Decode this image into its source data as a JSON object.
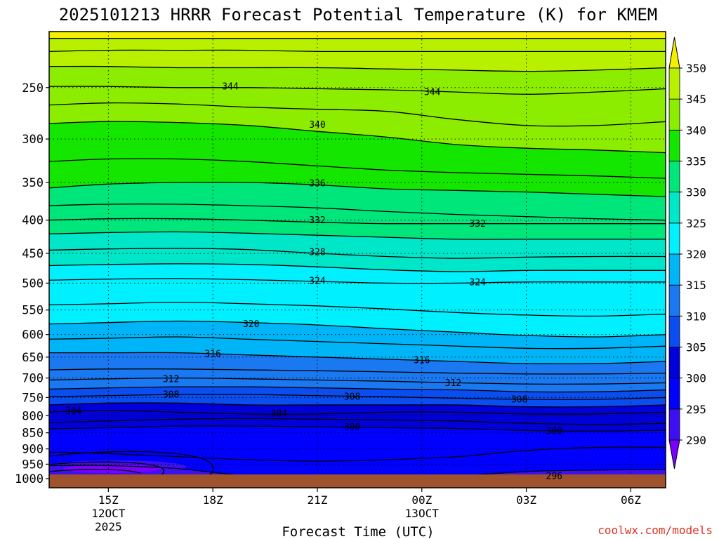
{
  "chart_data": {
    "type": "heatmap",
    "title": "2025101213 HRRR Forecast Potential Temperature (K) for KMEM",
    "xlabel": "Forecast Time (UTC)",
    "ylabel": "",
    "credit": "coolwx.com/models",
    "y_scale": "log-pressure",
    "y_ticks": [
      250,
      300,
      350,
      400,
      450,
      500,
      550,
      600,
      650,
      700,
      750,
      800,
      850,
      900,
      950,
      1000
    ],
    "ylim": [
      205,
      1010
    ],
    "xlim": [
      13.3,
      31.0
    ],
    "x_ticks": [
      {
        "x": 15,
        "label": "15Z",
        "sub1": "12OCT",
        "sub2": "2025"
      },
      {
        "x": 18,
        "label": "18Z",
        "sub1": "",
        "sub2": ""
      },
      {
        "x": 21,
        "label": "21Z",
        "sub1": "",
        "sub2": ""
      },
      {
        "x": 24,
        "label": "00Z",
        "sub1": "13OCT",
        "sub2": ""
      },
      {
        "x": 27,
        "label": "03Z",
        "sub1": "",
        "sub2": ""
      },
      {
        "x": 30,
        "label": "06Z",
        "sub1": "",
        "sub2": ""
      }
    ],
    "grid": true,
    "colorbar": {
      "unit": "K",
      "labels": [
        290,
        295,
        300,
        305,
        310,
        315,
        320,
        325,
        330,
        335,
        340,
        345,
        350
      ],
      "colors": [
        "#7a00ff",
        "#3c10f0",
        "#0000ff",
        "#0000d8",
        "#0a4ef0",
        "#1a78f0",
        "#00b4f8",
        "#00f0ff",
        "#00e6c8",
        "#00e67a",
        "#14e600",
        "#8ced00",
        "#b8f000",
        "#f4f000"
      ]
    },
    "contour_interval_K": 2,
    "x_samples": [
      13.3,
      15,
      17,
      19,
      21,
      23,
      25,
      27,
      29,
      31
    ],
    "isentropes": [
      {
        "theta": 294,
        "p": [
          993,
          993,
          993,
          993,
          993,
          993,
          993,
          993,
          993,
          993
        ]
      },
      {
        "theta": 296,
        "p": [
          955,
          955,
          965,
          990,
          993,
          993,
          990,
          975,
          970,
          968
        ]
      },
      {
        "theta": 298,
        "p": [
          910,
          915,
          925,
          935,
          940,
          935,
          925,
          905,
          895,
          895
        ]
      },
      {
        "theta": 300,
        "p": [
          838,
          835,
          830,
          830,
          832,
          835,
          837,
          843,
          845,
          842
        ]
      },
      {
        "theta": 302,
        "p": [
          820,
          815,
          810,
          808,
          810,
          812,
          815,
          822,
          825,
          822
        ]
      },
      {
        "theta": 304,
        "p": [
          790,
          785,
          790,
          795,
          795,
          790,
          790,
          795,
          795,
          790
        ]
      },
      {
        "theta": 306,
        "p": [
          770,
          765,
          765,
          770,
          770,
          770,
          770,
          775,
          775,
          770
        ]
      },
      {
        "theta": 308,
        "p": [
          748,
          745,
          742,
          742,
          745,
          748,
          752,
          755,
          755,
          750
        ]
      },
      {
        "theta": 310,
        "p": [
          728,
          725,
          722,
          722,
          725,
          728,
          730,
          735,
          735,
          730
        ]
      },
      {
        "theta": 312,
        "p": [
          705,
          702,
          700,
          702,
          705,
          708,
          712,
          715,
          715,
          712
        ]
      },
      {
        "theta": 314,
        "p": [
          680,
          678,
          678,
          680,
          682,
          685,
          688,
          690,
          690,
          688
        ]
      },
      {
        "theta": 316,
        "p": [
          640,
          640,
          640,
          645,
          650,
          655,
          660,
          665,
          665,
          660
        ]
      },
      {
        "theta": 318,
        "p": [
          610,
          608,
          605,
          610,
          615,
          620,
          625,
          630,
          630,
          625
        ]
      },
      {
        "theta": 320,
        "p": [
          578,
          575,
          572,
          575,
          580,
          588,
          595,
          602,
          605,
          600
        ]
      },
      {
        "theta": 322,
        "p": [
          540,
          538,
          535,
          538,
          542,
          548,
          555,
          560,
          562,
          558
        ]
      },
      {
        "theta": 324,
        "p": [
          495,
          493,
          492,
          494,
          497,
          500,
          500,
          498,
          498,
          498
        ]
      },
      {
        "theta": 326,
        "p": [
          470,
          468,
          467,
          468,
          472,
          477,
          480,
          478,
          478,
          478
        ]
      },
      {
        "theta": 328,
        "p": [
          445,
          443,
          442,
          444,
          450,
          455,
          458,
          456,
          455,
          455
        ]
      },
      {
        "theta": 330,
        "p": [
          420,
          418,
          417,
          419,
          422,
          425,
          428,
          428,
          428,
          428
        ]
      },
      {
        "theta": 332,
        "p": [
          400,
          398,
          398,
          400,
          403,
          405,
          405,
          405,
          405,
          405
        ]
      },
      {
        "theta": 334,
        "p": [
          380,
          378,
          378,
          380,
          383,
          388,
          392,
          395,
          398,
          400
        ]
      },
      {
        "theta": 336,
        "p": [
          357,
          352,
          350,
          350,
          353,
          358,
          360,
          362,
          365,
          368
        ]
      },
      {
        "theta": 338,
        "p": [
          325,
          322,
          322,
          325,
          330,
          335,
          338,
          340,
          342,
          345
        ]
      },
      {
        "theta": 340,
        "p": [
          284,
          282,
          283,
          286,
          292,
          298,
          306,
          310,
          312,
          315
        ]
      },
      {
        "theta": 342,
        "p": [
          266,
          264,
          265,
          268,
          270,
          272,
          280,
          286,
          286,
          282
        ]
      },
      {
        "theta": 344,
        "p": [
          249,
          249,
          250,
          250,
          251,
          252,
          254,
          256,
          254,
          251
        ]
      },
      {
        "theta": 346,
        "p": [
          232,
          232,
          233,
          233,
          233,
          234,
          235,
          236,
          235,
          233
        ]
      },
      {
        "theta": 348,
        "p": [
          220,
          219,
          219,
          219,
          220,
          220,
          220,
          220,
          220,
          220
        ]
      },
      {
        "theta": 350,
        "p": [
          210,
          210,
          210,
          210,
          210,
          210,
          210,
          210,
          210,
          210
        ]
      }
    ],
    "contour_labels": [
      {
        "text": "344",
        "x": 18.5,
        "p": 249
      },
      {
        "text": "344",
        "x": 24.3,
        "p": 254
      },
      {
        "text": "340",
        "x": 21.0,
        "p": 285
      },
      {
        "text": "336",
        "x": 21.0,
        "p": 351
      },
      {
        "text": "332",
        "x": 21.0,
        "p": 400
      },
      {
        "text": "332",
        "x": 25.6,
        "p": 405
      },
      {
        "text": "328",
        "x": 21.0,
        "p": 448
      },
      {
        "text": "324",
        "x": 21.0,
        "p": 496
      },
      {
        "text": "324",
        "x": 25.6,
        "p": 498
      },
      {
        "text": "320",
        "x": 19.1,
        "p": 578
      },
      {
        "text": "316",
        "x": 18.0,
        "p": 642
      },
      {
        "text": "316",
        "x": 24.0,
        "p": 657
      },
      {
        "text": "312",
        "x": 16.8,
        "p": 702
      },
      {
        "text": "312",
        "x": 24.9,
        "p": 712
      },
      {
        "text": "308",
        "x": 16.8,
        "p": 742
      },
      {
        "text": "308",
        "x": 22.0,
        "p": 747
      },
      {
        "text": "308",
        "x": 26.8,
        "p": 755
      },
      {
        "text": "304",
        "x": 14.0,
        "p": 787
      },
      {
        "text": "304",
        "x": 19.9,
        "p": 793
      },
      {
        "text": "300",
        "x": 22.0,
        "p": 832
      },
      {
        "text": "300",
        "x": 27.8,
        "p": 844
      },
      {
        "text": "296",
        "x": 27.8,
        "p": 990
      }
    ]
  }
}
